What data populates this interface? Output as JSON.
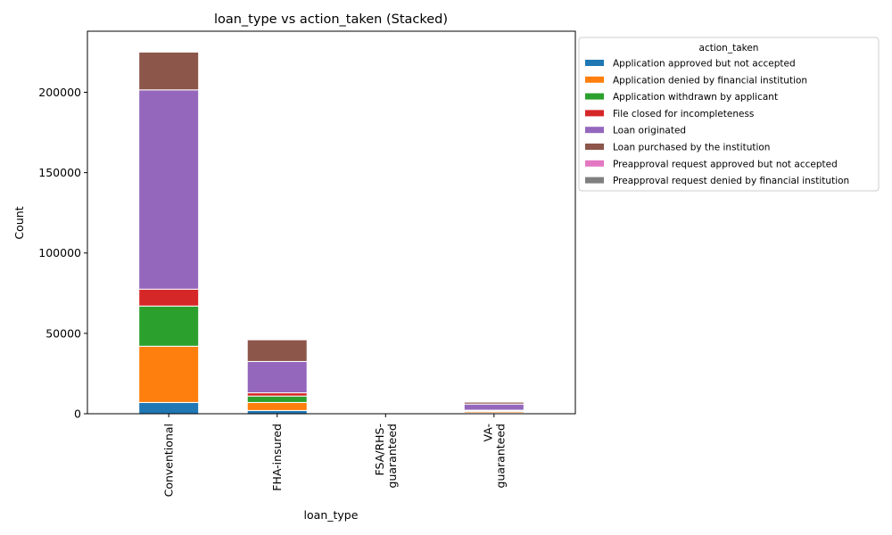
{
  "chart_data": {
    "type": "bar",
    "stacked": true,
    "title": "loan_type vs action_taken (Stacked)",
    "xlabel": "loan_type",
    "ylabel": "Count",
    "ylim": [
      0,
      238000
    ],
    "yticks": [
      0,
      50000,
      100000,
      150000,
      200000
    ],
    "ytick_labels": [
      "0",
      "50000",
      "100000",
      "150000",
      "200000"
    ],
    "categories": [
      "Conventional",
      "FHA-insured",
      "FSA/RHS-guaranteed",
      "VA-guaranteed"
    ],
    "category_label_lines": [
      [
        "Conventional"
      ],
      [
        "FHA-insured"
      ],
      [
        "FSA/RHS-",
        "guaranteed"
      ],
      [
        "VA-",
        "guaranteed"
      ]
    ],
    "legend_title": "action_taken",
    "legend_position": "outside-right",
    "series": [
      {
        "name": "Application approved but not accepted",
        "color": "#1f77b4",
        "values": [
          7000,
          2000,
          0,
          400
        ]
      },
      {
        "name": "Application denied by financial institution",
        "color": "#ff7f0e",
        "values": [
          35000,
          5000,
          0,
          900
        ]
      },
      {
        "name": "Application withdrawn by applicant",
        "color": "#2ca02c",
        "values": [
          25000,
          4000,
          0,
          600
        ]
      },
      {
        "name": "File closed for incompleteness",
        "color": "#d62728",
        "values": [
          10500,
          2000,
          0,
          300
        ]
      },
      {
        "name": "Loan originated",
        "color": "#9467bd",
        "values": [
          124000,
          19500,
          0,
          3800
        ]
      },
      {
        "name": "Loan purchased by the institution",
        "color": "#8c564b",
        "values": [
          23500,
          13500,
          0,
          1200
        ]
      },
      {
        "name": "Preapproval request approved but not accepted",
        "color": "#e377c2",
        "values": [
          0,
          0,
          0,
          0
        ]
      },
      {
        "name": "Preapproval request denied by financial institution",
        "color": "#7f7f7f",
        "values": [
          0,
          0,
          0,
          0
        ]
      }
    ]
  }
}
